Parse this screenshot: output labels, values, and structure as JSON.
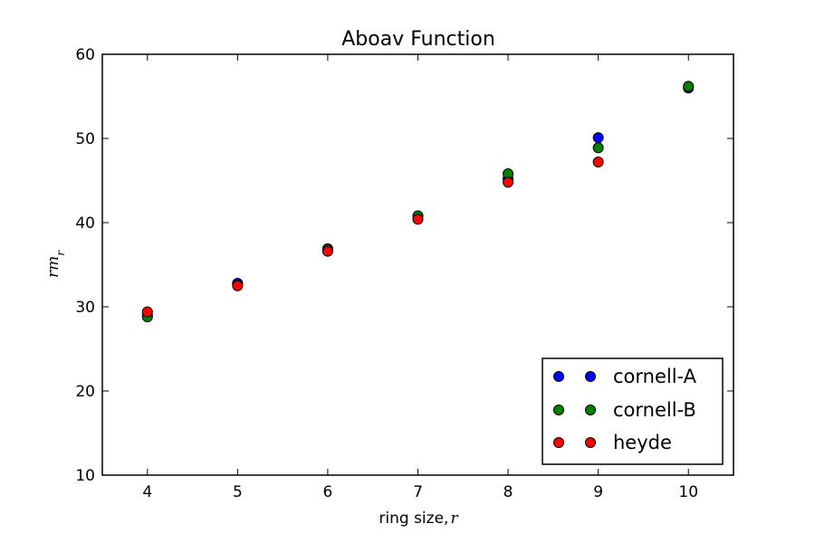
{
  "chart_data": {
    "type": "scatter",
    "title": "Aboav Function",
    "xlabel": "ring size,",
    "xlabel_math": "r",
    "ylabel_main": "rm",
    "ylabel_sub": "r",
    "xlim": [
      3.5,
      10.5
    ],
    "ylim": [
      10,
      60
    ],
    "xticks": [
      4,
      5,
      6,
      7,
      8,
      9,
      10
    ],
    "yticks": [
      10,
      20,
      30,
      40,
      50,
      60
    ],
    "grid": false,
    "legend_position": "lower-right",
    "series": [
      {
        "name": "cornell-A",
        "color": "#0000ff",
        "x": [
          4,
          5,
          6,
          7,
          8,
          9,
          10
        ],
        "y": [
          29.0,
          32.8,
          36.9,
          40.8,
          45.2,
          50.1,
          56.0
        ]
      },
      {
        "name": "cornell-B",
        "color": "#008000",
        "x": [
          4,
          5,
          6,
          7,
          8,
          9,
          10
        ],
        "y": [
          28.8,
          32.6,
          36.8,
          40.8,
          45.8,
          48.9,
          56.2
        ]
      },
      {
        "name": "heyde",
        "color": "#ff0000",
        "x": [
          4,
          5,
          6,
          7,
          8,
          9
        ],
        "y": [
          29.4,
          32.5,
          36.6,
          40.4,
          44.8,
          47.2
        ]
      }
    ]
  }
}
